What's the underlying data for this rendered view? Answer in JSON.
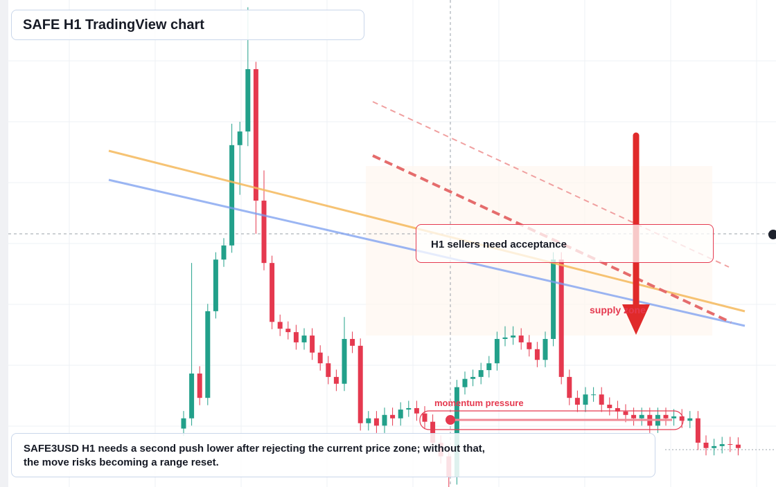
{
  "header": {
    "title": "SAFE H1 TradingView chart"
  },
  "annotations": {
    "callout": "H1 sellers need acceptance",
    "zone": "supply zone",
    "momentum": "momentum pressure"
  },
  "note": {
    "lines": [
      "SAFE3USD H1 needs a second push lower after rejecting the current price zone; without that,",
      "the move risks becoming a range reset."
    ]
  },
  "chart_data": {
    "type": "candlestick",
    "ylim": [
      0,
      100
    ],
    "colors": {
      "up": "#22a08a",
      "down": "#e5394f"
    },
    "open": [
      12.0,
      14.1,
      23.3,
      18.3,
      36.1,
      46.7,
      49.6,
      70.2,
      73.0,
      85.8,
      58.8,
      46.0,
      33.9,
      32.5,
      31.8,
      29.7,
      31.1,
      27.6,
      25.4,
      22.6,
      21.2,
      30.4,
      29.0,
      13.1,
      14.1,
      12.6,
      14.8,
      14.1,
      15.9,
      16.2,
      15.1,
      13.4,
      9.1,
      6.3,
      2.0,
      20.5,
      22.2,
      22.6,
      24.0,
      25.4,
      30.4,
      30.7,
      31.1,
      29.7,
      28.3,
      26.1,
      30.4,
      46.7,
      22.6,
      18.3,
      16.9,
      19.0,
      19.0,
      16.9,
      16.2,
      15.5,
      14.8,
      14.1,
      14.8,
      12.6,
      14.8,
      14.1,
      14.5,
      13.6,
      14.1,
      9.1,
      8.0,
      8.4,
      8.8,
      8.7
    ],
    "high": [
      15.6,
      46.0,
      24.8,
      37.6,
      48.2,
      51.1,
      74.6,
      75.0,
      98.5,
      87.3,
      65.0,
      47.5,
      35.4,
      34.0,
      33.3,
      32.6,
      32.6,
      29.1,
      26.9,
      24.1,
      34.9,
      31.9,
      30.5,
      15.6,
      15.6,
      16.3,
      16.3,
      17.4,
      17.7,
      17.7,
      16.6,
      14.9,
      10.6,
      7.8,
      22.0,
      23.7,
      24.1,
      25.5,
      26.9,
      31.9,
      33.0,
      33.0,
      32.6,
      31.2,
      29.8,
      31.9,
      48.2,
      48.2,
      24.1,
      19.8,
      20.5,
      20.5,
      20.5,
      18.4,
      17.7,
      17.0,
      16.3,
      16.3,
      16.3,
      16.3,
      16.3,
      16.0,
      16.0,
      15.6,
      15.6,
      10.6,
      9.9,
      10.3,
      10.3,
      10.2
    ],
    "low": [
      10.5,
      12.6,
      16.8,
      16.8,
      34.6,
      45.2,
      48.1,
      60.0,
      70.0,
      52.0,
      44.5,
      32.4,
      31.0,
      30.3,
      28.2,
      28.2,
      26.1,
      23.9,
      21.1,
      19.7,
      19.7,
      27.5,
      11.6,
      11.6,
      11.1,
      11.1,
      12.6,
      12.6,
      14.4,
      13.6,
      11.9,
      7.6,
      4.8,
      0.0,
      0.5,
      19.0,
      20.7,
      21.1,
      22.5,
      23.9,
      28.9,
      29.2,
      28.2,
      26.8,
      24.6,
      24.6,
      28.9,
      21.1,
      16.8,
      15.4,
      15.4,
      17.5,
      15.4,
      14.7,
      14.0,
      13.3,
      12.6,
      12.6,
      11.1,
      11.1,
      12.6,
      12.6,
      12.1,
      12.1,
      7.6,
      6.5,
      6.5,
      6.9,
      7.2,
      6.5
    ],
    "close": [
      14.1,
      23.3,
      18.3,
      36.1,
      46.7,
      49.6,
      70.2,
      73.0,
      85.8,
      58.8,
      46.0,
      33.9,
      32.5,
      31.8,
      29.7,
      31.1,
      27.6,
      25.4,
      22.6,
      21.2,
      30.4,
      29.0,
      13.1,
      14.1,
      12.6,
      14.8,
      14.1,
      15.9,
      16.2,
      15.1,
      13.4,
      9.1,
      6.3,
      2.0,
      20.5,
      22.2,
      22.6,
      24.0,
      25.4,
      30.4,
      30.7,
      31.1,
      29.7,
      28.3,
      26.1,
      30.4,
      46.7,
      22.6,
      18.3,
      16.9,
      19.0,
      19.0,
      16.9,
      16.2,
      15.5,
      14.8,
      14.1,
      14.8,
      12.6,
      14.8,
      14.1,
      14.5,
      13.6,
      14.1,
      9.1,
      8.0,
      8.4,
      8.8,
      8.7,
      8.0
    ]
  }
}
